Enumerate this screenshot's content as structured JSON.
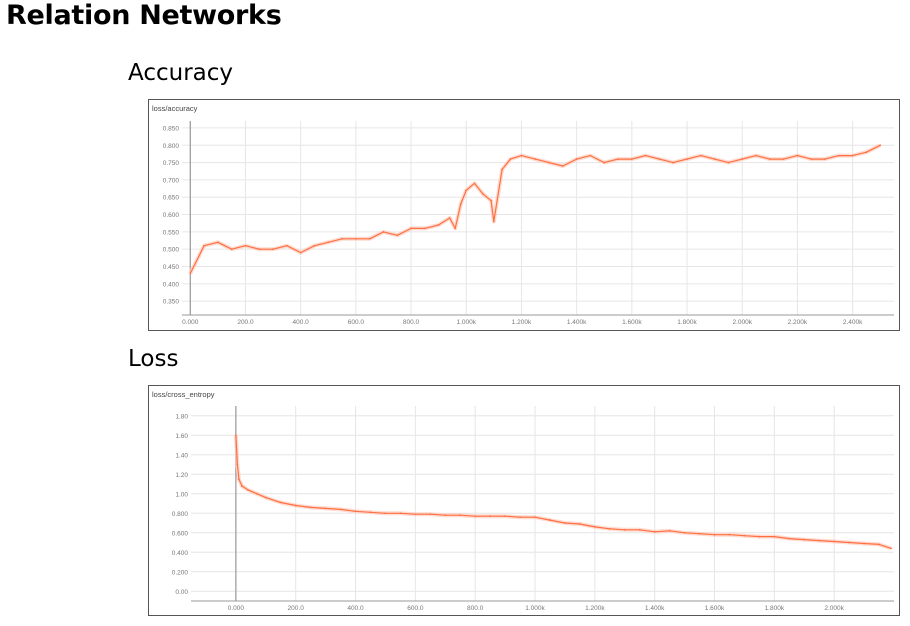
{
  "page": {
    "title": "Relation Networks"
  },
  "sections": {
    "accuracy_heading": "Accuracy",
    "loss_heading": "Loss"
  },
  "colors": {
    "series": "#ff7043",
    "series_light": "#ffccbc",
    "grid": "#e6e6e6",
    "axis": "#999999",
    "frame": "#555555"
  },
  "chart_data": [
    {
      "type": "line",
      "title": "loss/accuracy",
      "xlabel": "",
      "ylabel": "",
      "xlim": [
        -30,
        2550
      ],
      "ylim": [
        0.31,
        0.87
      ],
      "x_ticks": [
        0,
        200,
        400,
        600,
        800,
        1000,
        1200,
        1400,
        1600,
        1800,
        2000,
        2200,
        2400
      ],
      "x_tick_labels": [
        "0.000",
        "200.0",
        "400.0",
        "600.0",
        "800.0",
        "1.000k",
        "1.200k",
        "1.400k",
        "1.600k",
        "1.800k",
        "2.000k",
        "2.200k",
        "2.400k"
      ],
      "y_ticks": [
        0.35,
        0.4,
        0.45,
        0.5,
        0.55,
        0.6,
        0.65,
        0.7,
        0.75,
        0.8,
        0.85
      ],
      "y_tick_labels": [
        "0.350",
        "0.400",
        "0.450",
        "0.500",
        "0.550",
        "0.600",
        "0.650",
        "0.700",
        "0.750",
        "0.800",
        "0.850"
      ],
      "grid": true,
      "series": [
        {
          "x": [
            0,
            50,
            100,
            150,
            200,
            250,
            300,
            350,
            400,
            450,
            500,
            550,
            600,
            650,
            700,
            750,
            800,
            850,
            900,
            940,
            960,
            980,
            1000,
            1030,
            1060,
            1090,
            1100,
            1130,
            1160,
            1200,
            1250,
            1300,
            1350,
            1400,
            1450,
            1500,
            1550,
            1600,
            1650,
            1700,
            1750,
            1800,
            1850,
            1900,
            1950,
            2000,
            2050,
            2100,
            2150,
            2200,
            2250,
            2300,
            2350,
            2400,
            2450,
            2500
          ],
          "y": [
            0.43,
            0.51,
            0.52,
            0.5,
            0.51,
            0.5,
            0.5,
            0.51,
            0.49,
            0.51,
            0.52,
            0.53,
            0.53,
            0.53,
            0.55,
            0.54,
            0.56,
            0.56,
            0.57,
            0.59,
            0.56,
            0.63,
            0.67,
            0.69,
            0.66,
            0.64,
            0.58,
            0.73,
            0.76,
            0.77,
            0.76,
            0.75,
            0.74,
            0.76,
            0.77,
            0.75,
            0.76,
            0.76,
            0.77,
            0.76,
            0.75,
            0.76,
            0.77,
            0.76,
            0.75,
            0.76,
            0.77,
            0.76,
            0.76,
            0.77,
            0.76,
            0.76,
            0.77,
            0.77,
            0.78,
            0.8
          ]
        }
      ]
    },
    {
      "type": "line",
      "title": "loss/cross_entropy",
      "xlabel": "",
      "ylabel": "",
      "xlim": [
        -150,
        2200
      ],
      "ylim": [
        -0.1,
        1.9
      ],
      "x_ticks": [
        0,
        200,
        400,
        600,
        800,
        1000,
        1200,
        1400,
        1600,
        1800,
        2000
      ],
      "x_tick_labels": [
        "0.000",
        "200.0",
        "400.0",
        "600.0",
        "800.0",
        "1.000k",
        "1.200k",
        "1.400k",
        "1.600k",
        "1.800k",
        "2.000k"
      ],
      "y_ticks": [
        0,
        0.2,
        0.4,
        0.6,
        0.8,
        1.0,
        1.2,
        1.4,
        1.6,
        1.8
      ],
      "y_tick_labels": [
        "0.00",
        "0.200",
        "0.400",
        "0.600",
        "0.800",
        "1.00",
        "1.20",
        "1.40",
        "1.60",
        "1.80"
      ],
      "grid": true,
      "series": [
        {
          "x": [
            0,
            5,
            10,
            20,
            40,
            70,
            100,
            150,
            200,
            250,
            300,
            350,
            400,
            450,
            500,
            550,
            600,
            650,
            700,
            750,
            800,
            850,
            900,
            950,
            1000,
            1050,
            1100,
            1150,
            1200,
            1250,
            1300,
            1350,
            1400,
            1450,
            1500,
            1550,
            1600,
            1650,
            1700,
            1750,
            1800,
            1850,
            1900,
            1950,
            2000,
            2050,
            2100,
            2150,
            2190
          ],
          "y": [
            1.6,
            1.3,
            1.15,
            1.08,
            1.04,
            1.0,
            0.96,
            0.91,
            0.88,
            0.86,
            0.85,
            0.84,
            0.82,
            0.81,
            0.8,
            0.8,
            0.79,
            0.79,
            0.78,
            0.78,
            0.77,
            0.77,
            0.77,
            0.76,
            0.76,
            0.73,
            0.7,
            0.69,
            0.66,
            0.64,
            0.63,
            0.63,
            0.61,
            0.62,
            0.6,
            0.59,
            0.58,
            0.58,
            0.57,
            0.56,
            0.56,
            0.54,
            0.53,
            0.52,
            0.51,
            0.5,
            0.49,
            0.48,
            0.44
          ]
        }
      ]
    }
  ]
}
